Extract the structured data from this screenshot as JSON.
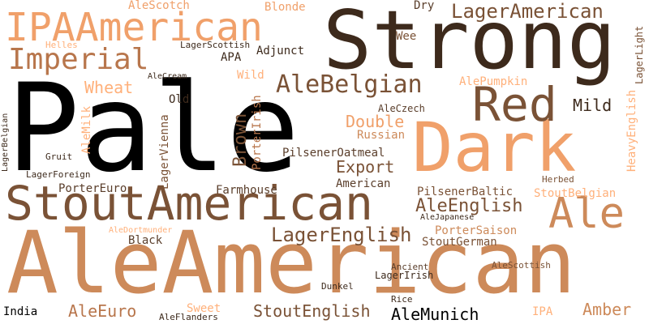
{
  "cloud": {
    "words": [
      {
        "id": "pale",
        "text": "Pale"
      },
      {
        "id": "alemerican",
        "text": "AleAmerican"
      },
      {
        "id": "strong",
        "text": "Strong"
      },
      {
        "id": "dark",
        "text": "Dark"
      },
      {
        "id": "stoutamerican",
        "text": "StoutAmerican"
      },
      {
        "id": "ipaamerican",
        "text": "IPAAmerican"
      },
      {
        "id": "red",
        "text": "Red"
      },
      {
        "id": "ale",
        "text": "Ale"
      },
      {
        "id": "imperial",
        "text": "Imperial"
      },
      {
        "id": "alebelgian",
        "text": "AleBelgian"
      },
      {
        "id": "lageramerican",
        "text": "LagerAmerican"
      },
      {
        "id": "lagerenglish",
        "text": "LagerEnglish"
      },
      {
        "id": "aleenglish",
        "text": "AleEnglish"
      },
      {
        "id": "brown",
        "text": "Brown"
      },
      {
        "id": "double",
        "text": "Double"
      },
      {
        "id": "export",
        "text": "Export"
      },
      {
        "id": "alemunich",
        "text": "AleMunich"
      },
      {
        "id": "stoutenglish",
        "text": "StoutEnglish"
      },
      {
        "id": "wheat",
        "text": "Wheat"
      },
      {
        "id": "mild",
        "text": "Mild"
      },
      {
        "id": "amber",
        "text": "Amber"
      },
      {
        "id": "aleeuro",
        "text": "AleEuro"
      },
      {
        "id": "russian",
        "text": "Russian"
      },
      {
        "id": "pilsoat",
        "text": "PilsenerOatmeal"
      },
      {
        "id": "pilsbaltic",
        "text": "PilsenerBaltic"
      },
      {
        "id": "porterirish",
        "text": "PorterIrish"
      },
      {
        "id": "lagervienna",
        "text": "LagerVienna"
      },
      {
        "id": "heavyenglish",
        "text": "HeavyEnglish"
      },
      {
        "id": "sweet",
        "text": "Sweet"
      },
      {
        "id": "black",
        "text": "Black"
      },
      {
        "id": "dry",
        "text": "Dry"
      },
      {
        "id": "porterssaison",
        "text": "PorterSaison"
      },
      {
        "id": "stoutgerman",
        "text": "StoutGerman"
      },
      {
        "id": "stoutbelgian",
        "text": "StoutBelgian"
      },
      {
        "id": "farmhouse",
        "text": "Farmhouse"
      },
      {
        "id": "aleczech",
        "text": "AleCzech"
      },
      {
        "id": "american",
        "text": "American"
      },
      {
        "id": "portereuro",
        "text": "PorterEuro"
      },
      {
        "id": "wee",
        "text": "Wee"
      },
      {
        "id": "wild",
        "text": "Wild"
      },
      {
        "id": "lagerlight",
        "text": "LagerLight"
      },
      {
        "id": "alepumpkin",
        "text": "AlePumpkin"
      },
      {
        "id": "blonde",
        "text": "Blonde"
      },
      {
        "id": "alescotch",
        "text": "AleScotch"
      },
      {
        "id": "apa",
        "text": "APA"
      },
      {
        "id": "adjunct",
        "text": "Adjunct"
      },
      {
        "id": "old",
        "text": "Old"
      },
      {
        "id": "india",
        "text": "India"
      },
      {
        "id": "ipa",
        "text": "IPA"
      },
      {
        "id": "alemilk",
        "text": "AleMilk"
      },
      {
        "id": "lagerirish",
        "text": "LagerIrish"
      },
      {
        "id": "alescottish",
        "text": "AleScottish"
      },
      {
        "id": "alecream",
        "text": "AleCream"
      },
      {
        "id": "lagerscottish",
        "text": "LagerScottish"
      },
      {
        "id": "helles",
        "text": "Helles"
      },
      {
        "id": "gruit",
        "text": "Gruit"
      },
      {
        "id": "lagerforeign",
        "text": "LagerForeign"
      },
      {
        "id": "lagerbelgian",
        "text": "LagerBelgian"
      },
      {
        "id": "alejapanese",
        "text": "AleJapanese"
      },
      {
        "id": "aledortmunder",
        "text": "AleDortmunder"
      },
      {
        "id": "ancient",
        "text": "Ancient"
      },
      {
        "id": "dunkel",
        "text": "Dunkel"
      },
      {
        "id": "rice",
        "text": "Rice"
      },
      {
        "id": "aleflanders",
        "text": "AleFlanders"
      },
      {
        "id": "herbed",
        "text": "Herbed"
      }
    ]
  }
}
